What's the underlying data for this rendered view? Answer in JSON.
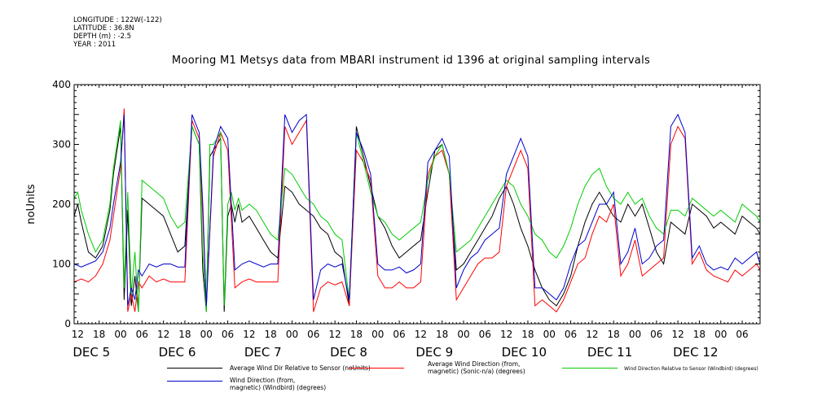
{
  "meta": {
    "longitude": "LONGITUDE : 122W(-122)",
    "latitude": "LATITUDE : 36.8N",
    "depth": "DEPTH (m) : -2.5",
    "year": "YEAR : 2011"
  },
  "chart_data": {
    "type": "line",
    "title": "Mooring M1 Metsys data from MBARI instrument id 1396 at original sampling intervals",
    "ylabel": "noUnits",
    "xlabel": "",
    "ylim": [
      0,
      400
    ],
    "yticks": [
      0,
      100,
      200,
      300,
      400
    ],
    "ytick_labels": [
      "0",
      "100",
      "200",
      "300",
      "400"
    ],
    "xlim": [
      11,
      203
    ],
    "hour_ticks": [
      {
        "t": 12,
        "label": "12"
      },
      {
        "t": 18,
        "label": "18"
      },
      {
        "t": 24,
        "label": "00"
      },
      {
        "t": 30,
        "label": "06"
      },
      {
        "t": 36,
        "label": "12"
      },
      {
        "t": 42,
        "label": "18"
      },
      {
        "t": 48,
        "label": "00"
      },
      {
        "t": 54,
        "label": "06"
      },
      {
        "t": 60,
        "label": "12"
      },
      {
        "t": 66,
        "label": "18"
      },
      {
        "t": 72,
        "label": "00"
      },
      {
        "t": 78,
        "label": "06"
      },
      {
        "t": 84,
        "label": "12"
      },
      {
        "t": 90,
        "label": "18"
      },
      {
        "t": 96,
        "label": "00"
      },
      {
        "t": 102,
        "label": "06"
      },
      {
        "t": 108,
        "label": "12"
      },
      {
        "t": 114,
        "label": "18"
      },
      {
        "t": 120,
        "label": "00"
      },
      {
        "t": 126,
        "label": "06"
      },
      {
        "t": 132,
        "label": "12"
      },
      {
        "t": 138,
        "label": "18"
      },
      {
        "t": 144,
        "label": "00"
      },
      {
        "t": 150,
        "label": "06"
      },
      {
        "t": 156,
        "label": "12"
      },
      {
        "t": 162,
        "label": "18"
      },
      {
        "t": 168,
        "label": "00"
      },
      {
        "t": 174,
        "label": "06"
      },
      {
        "t": 180,
        "label": "12"
      },
      {
        "t": 186,
        "label": "18"
      },
      {
        "t": 192,
        "label": "00"
      },
      {
        "t": 198,
        "label": "06"
      }
    ],
    "day_labels": [
      {
        "t": 12,
        "label": "DEC  5"
      },
      {
        "t": 36,
        "label": "DEC  6"
      },
      {
        "t": 60,
        "label": "DEC  7"
      },
      {
        "t": 84,
        "label": "DEC  8"
      },
      {
        "t": 108,
        "label": "DEC  9"
      },
      {
        "t": 132,
        "label": "DEC 10"
      },
      {
        "t": 156,
        "label": "DEC 11"
      },
      {
        "t": 180,
        "label": "DEC 12"
      }
    ],
    "grid": false,
    "x_unit": "hours after 2011-12-05 00:00",
    "series": [
      {
        "name": "Average Wind Dir Relative to Sensor (noUnits)",
        "color": "#000000",
        "x": [
          11,
          12,
          13,
          15,
          17,
          19,
          21,
          22,
          24,
          25,
          26,
          27,
          28,
          29,
          30,
          32,
          34,
          36,
          38,
          40,
          42,
          44,
          46,
          47,
          48,
          49,
          50,
          51,
          52,
          53,
          54,
          55,
          56,
          57,
          58,
          60,
          62,
          64,
          66,
          68,
          70,
          72,
          74,
          76,
          78,
          80,
          82,
          84,
          86,
          88,
          90,
          92,
          94,
          96,
          98,
          100,
          102,
          104,
          106,
          108,
          110,
          112,
          114,
          116,
          118,
          120,
          122,
          124,
          126,
          128,
          130,
          132,
          134,
          136,
          138,
          140,
          142,
          144,
          146,
          148,
          150,
          152,
          154,
          156,
          158,
          160,
          162,
          164,
          166,
          168,
          170,
          172,
          174,
          176,
          178,
          180,
          182,
          184,
          186,
          188,
          190,
          192,
          194,
          196,
          198,
          200,
          202,
          203
        ],
        "y": [
          180,
          200,
          170,
          120,
          110,
          130,
          190,
          250,
          330,
          40,
          190,
          30,
          80,
          20,
          210,
          200,
          190,
          180,
          150,
          120,
          130,
          330,
          300,
          90,
          20,
          280,
          290,
          300,
          310,
          20,
          180,
          200,
          170,
          200,
          170,
          180,
          160,
          140,
          120,
          110,
          230,
          220,
          200,
          190,
          180,
          160,
          150,
          120,
          110,
          30,
          330,
          280,
          230,
          180,
          160,
          130,
          110,
          120,
          130,
          140,
          220,
          290,
          300,
          250,
          90,
          100,
          120,
          140,
          160,
          180,
          210,
          230,
          200,
          160,
          130,
          90,
          60,
          40,
          30,
          50,
          80,
          130,
          170,
          200,
          220,
          200,
          180,
          170,
          200,
          180,
          200,
          160,
          120,
          100,
          170,
          160,
          150,
          200,
          190,
          180,
          160,
          170,
          160,
          150,
          180,
          170,
          160,
          150
        ]
      },
      {
        "name": "Average Wind Direction (from, magnetic) (Sonic-n/a) (degrees)",
        "color": "#ff0000",
        "x": [
          11,
          13,
          15,
          17,
          19,
          21,
          22,
          24,
          25,
          26,
          27,
          28,
          29,
          30,
          32,
          34,
          36,
          38,
          40,
          42,
          44,
          46,
          47,
          48,
          50,
          52,
          54,
          56,
          58,
          60,
          62,
          64,
          66,
          68,
          70,
          72,
          74,
          76,
          78,
          80,
          82,
          84,
          86,
          88,
          90,
          92,
          94,
          96,
          98,
          100,
          102,
          104,
          106,
          108,
          110,
          112,
          114,
          116,
          118,
          120,
          122,
          124,
          126,
          128,
          130,
          132,
          134,
          136,
          138,
          140,
          142,
          144,
          146,
          148,
          150,
          152,
          154,
          156,
          158,
          160,
          162,
          164,
          166,
          168,
          170,
          172,
          174,
          176,
          178,
          180,
          182,
          184,
          186,
          188,
          190,
          192,
          194,
          196,
          198,
          200,
          202,
          203
        ],
        "y": [
          70,
          75,
          70,
          80,
          100,
          140,
          180,
          260,
          360,
          20,
          50,
          20,
          70,
          60,
          80,
          70,
          75,
          70,
          70,
          70,
          340,
          310,
          180,
          30,
          280,
          320,
          290,
          60,
          70,
          75,
          70,
          70,
          70,
          70,
          330,
          300,
          320,
          340,
          20,
          60,
          70,
          65,
          70,
          30,
          290,
          270,
          240,
          80,
          60,
          60,
          70,
          60,
          60,
          70,
          250,
          280,
          290,
          250,
          40,
          60,
          80,
          100,
          110,
          110,
          120,
          230,
          260,
          290,
          260,
          30,
          40,
          30,
          20,
          40,
          70,
          100,
          110,
          150,
          180,
          170,
          200,
          80,
          100,
          140,
          80,
          90,
          100,
          110,
          300,
          330,
          310,
          100,
          120,
          90,
          80,
          75,
          70,
          90,
          80,
          90,
          100,
          90
        ]
      },
      {
        "name": "Wind Direction Relative to Sensor (Windbird) (degrees)",
        "color": "#00cc00",
        "x": [
          11,
          12,
          13,
          15,
          17,
          19,
          21,
          22,
          24,
          25,
          26,
          27,
          28,
          29,
          30,
          32,
          34,
          36,
          38,
          40,
          42,
          44,
          46,
          47,
          48,
          49,
          50,
          51,
          52,
          53,
          54,
          55,
          56,
          57,
          58,
          60,
          62,
          64,
          66,
          68,
          70,
          72,
          74,
          76,
          78,
          80,
          82,
          84,
          86,
          88,
          90,
          92,
          94,
          96,
          98,
          100,
          102,
          104,
          106,
          108,
          110,
          112,
          114,
          116,
          118,
          120,
          122,
          124,
          126,
          128,
          130,
          132,
          134,
          136,
          138,
          140,
          142,
          144,
          146,
          148,
          150,
          152,
          154,
          156,
          158,
          160,
          162,
          164,
          166,
          168,
          170,
          172,
          174,
          176,
          178,
          180,
          182,
          184,
          186,
          188,
          190,
          192,
          194,
          196,
          198,
          200,
          202,
          203
        ],
        "y": [
          210,
          220,
          190,
          150,
          120,
          140,
          200,
          260,
          340,
          60,
          220,
          50,
          120,
          20,
          240,
          230,
          220,
          210,
          180,
          160,
          170,
          330,
          300,
          120,
          20,
          300,
          300,
          310,
          320,
          30,
          200,
          220,
          190,
          210,
          190,
          200,
          190,
          170,
          150,
          140,
          260,
          250,
          230,
          210,
          200,
          180,
          170,
          150,
          140,
          40,
          320,
          270,
          220,
          180,
          170,
          150,
          140,
          150,
          160,
          170,
          240,
          280,
          300,
          250,
          120,
          130,
          140,
          160,
          180,
          200,
          220,
          240,
          230,
          200,
          180,
          150,
          140,
          120,
          110,
          130,
          160,
          200,
          230,
          250,
          260,
          230,
          210,
          200,
          220,
          200,
          210,
          180,
          160,
          150,
          190,
          190,
          180,
          210,
          200,
          190,
          180,
          190,
          180,
          170,
          200,
          190,
          180,
          170
        ]
      },
      {
        "name": "Wind Direction (from, magnetic) (Windbird) (degrees)",
        "color": "#0000cc",
        "x": [
          11,
          13,
          15,
          17,
          19,
          21,
          22,
          24,
          25,
          26,
          27,
          28,
          29,
          30,
          32,
          34,
          36,
          38,
          40,
          42,
          44,
          46,
          47,
          48,
          50,
          52,
          54,
          56,
          58,
          60,
          62,
          64,
          66,
          68,
          70,
          72,
          74,
          76,
          78,
          80,
          82,
          84,
          86,
          88,
          90,
          92,
          94,
          96,
          98,
          100,
          102,
          104,
          106,
          108,
          110,
          112,
          114,
          116,
          118,
          120,
          122,
          124,
          126,
          128,
          130,
          132,
          134,
          136,
          138,
          140,
          142,
          144,
          146,
          148,
          150,
          152,
          154,
          156,
          158,
          160,
          162,
          164,
          166,
          168,
          170,
          172,
          174,
          176,
          178,
          180,
          182,
          184,
          186,
          188,
          190,
          192,
          194,
          196,
          198,
          200,
          202,
          203
        ],
        "y": [
          100,
          95,
          100,
          105,
          120,
          160,
          200,
          270,
          350,
          30,
          60,
          40,
          90,
          80,
          100,
          95,
          100,
          100,
          95,
          95,
          350,
          320,
          200,
          30,
          290,
          330,
          310,
          90,
          100,
          105,
          100,
          95,
          100,
          100,
          350,
          320,
          340,
          350,
          40,
          90,
          100,
          95,
          100,
          40,
          320,
          290,
          250,
          100,
          90,
          90,
          95,
          85,
          90,
          100,
          270,
          290,
          310,
          280,
          60,
          90,
          110,
          120,
          140,
          150,
          160,
          250,
          280,
          310,
          280,
          60,
          60,
          50,
          40,
          60,
          100,
          130,
          140,
          170,
          200,
          200,
          220,
          100,
          120,
          160,
          100,
          110,
          130,
          140,
          330,
          350,
          320,
          110,
          130,
          100,
          90,
          95,
          90,
          110,
          100,
          110,
          120,
          100
        ]
      }
    ]
  },
  "legend": [
    {
      "label_lines": [
        "Average Wind Dir Relative to Sensor (noUnits)"
      ],
      "color": "#000000"
    },
    {
      "label_lines": [
        "Average Wind Direction (from,",
        "magnetic) (Sonic-n/a) (degrees)"
      ],
      "color": "#ff0000"
    },
    {
      "label_lines": [
        "Wind Direction Relative to Sensor (Windbird) (degrees)"
      ],
      "color": "#00cc00"
    },
    {
      "label_lines": [
        "Wind Direction (from,",
        "magnetic) (Windbird) (degrees)"
      ],
      "color": "#0000cc"
    }
  ]
}
